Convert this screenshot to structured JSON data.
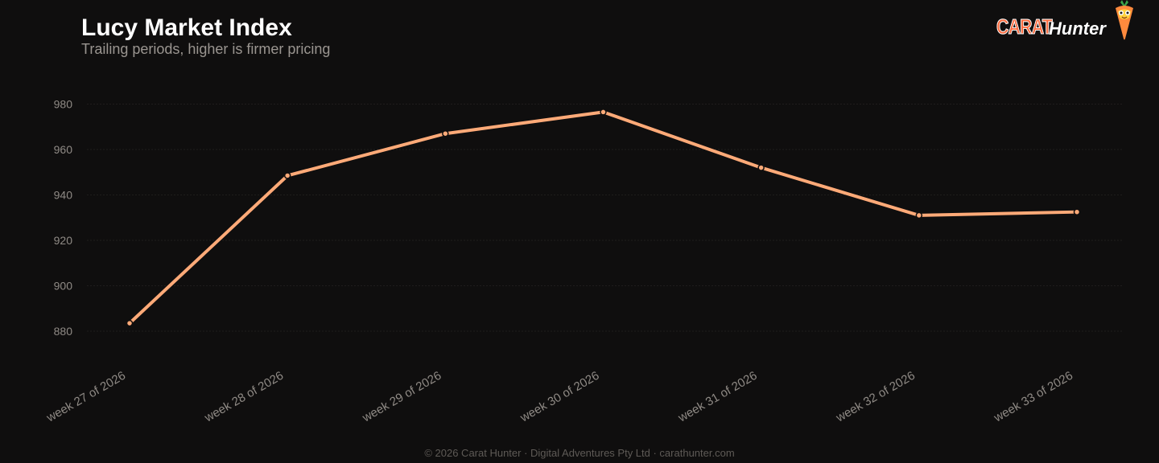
{
  "header": {
    "title": "Lucy Market Index",
    "subtitle": "Trailing periods, higher is firmer pricing"
  },
  "logo": {
    "brand_word": "CARAT",
    "brand_word2": "Hunter",
    "mascot_icon": "carrot-mascot-icon"
  },
  "footer": {
    "text": "© 2026 Carat Hunter · Digital Adventures Pty Ltd · carathunter.com"
  },
  "colors": {
    "background": "#0f0e0e",
    "line": "#ffaa78",
    "grid": "#1f1d1c",
    "tick_text": "#8f8a85",
    "brand_orange": "#ff6a3d"
  },
  "chart_data": {
    "type": "line",
    "title": "Lucy Market Index",
    "subtitle": "Trailing periods, higher is firmer pricing",
    "xlabel": "",
    "ylabel": "",
    "categories": [
      "week 27 of 2026",
      "week 28 of 2026",
      "week 29 of 2026",
      "week 30 of 2026",
      "week 31 of 2026",
      "week 32 of 2026",
      "week 33 of 2026"
    ],
    "series": [
      {
        "values": [
          883.5,
          948.5,
          967,
          976.5,
          952,
          931,
          932.5
        ]
      }
    ],
    "ylim": [
      870,
      990
    ],
    "yticks": [
      880,
      900,
      920,
      940,
      960,
      980
    ],
    "grid": true,
    "legend": "none"
  }
}
